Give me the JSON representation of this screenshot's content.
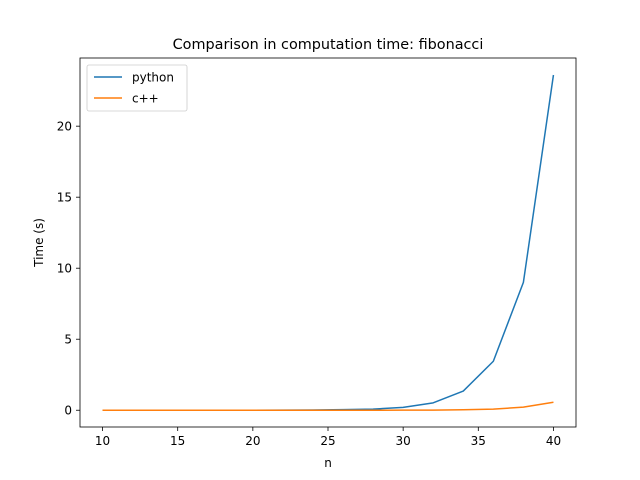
{
  "chart_data": {
    "type": "line",
    "title": "Comparison in computation time: fibonacci",
    "xlabel": "n",
    "ylabel": "Time (s)",
    "xlim": [
      8.5,
      41.5
    ],
    "ylim": [
      -1.18,
      24.8
    ],
    "xticks": [
      10,
      15,
      20,
      25,
      30,
      35,
      40
    ],
    "yticks": [
      0,
      5,
      10,
      15,
      20
    ],
    "x": [
      10,
      12,
      14,
      16,
      18,
      20,
      22,
      24,
      26,
      28,
      30,
      32,
      34,
      36,
      38,
      40
    ],
    "series": [
      {
        "name": "python",
        "color": "#1f77b4",
        "values": [
          0.0,
          0.0,
          0.0,
          0.0,
          0.001,
          0.003,
          0.007,
          0.018,
          0.04,
          0.08,
          0.2,
          0.52,
          1.35,
          3.45,
          9.0,
          23.6
        ]
      },
      {
        "name": "c++",
        "color": "#ff7f0e",
        "values": [
          0.0,
          0.0,
          0.0,
          0.0,
          0.0,
          0.0,
          0.0,
          0.0,
          0.0,
          0.002,
          0.005,
          0.012,
          0.03,
          0.08,
          0.22,
          0.56
        ]
      }
    ],
    "legend_position": "top-left",
    "grid": false
  }
}
